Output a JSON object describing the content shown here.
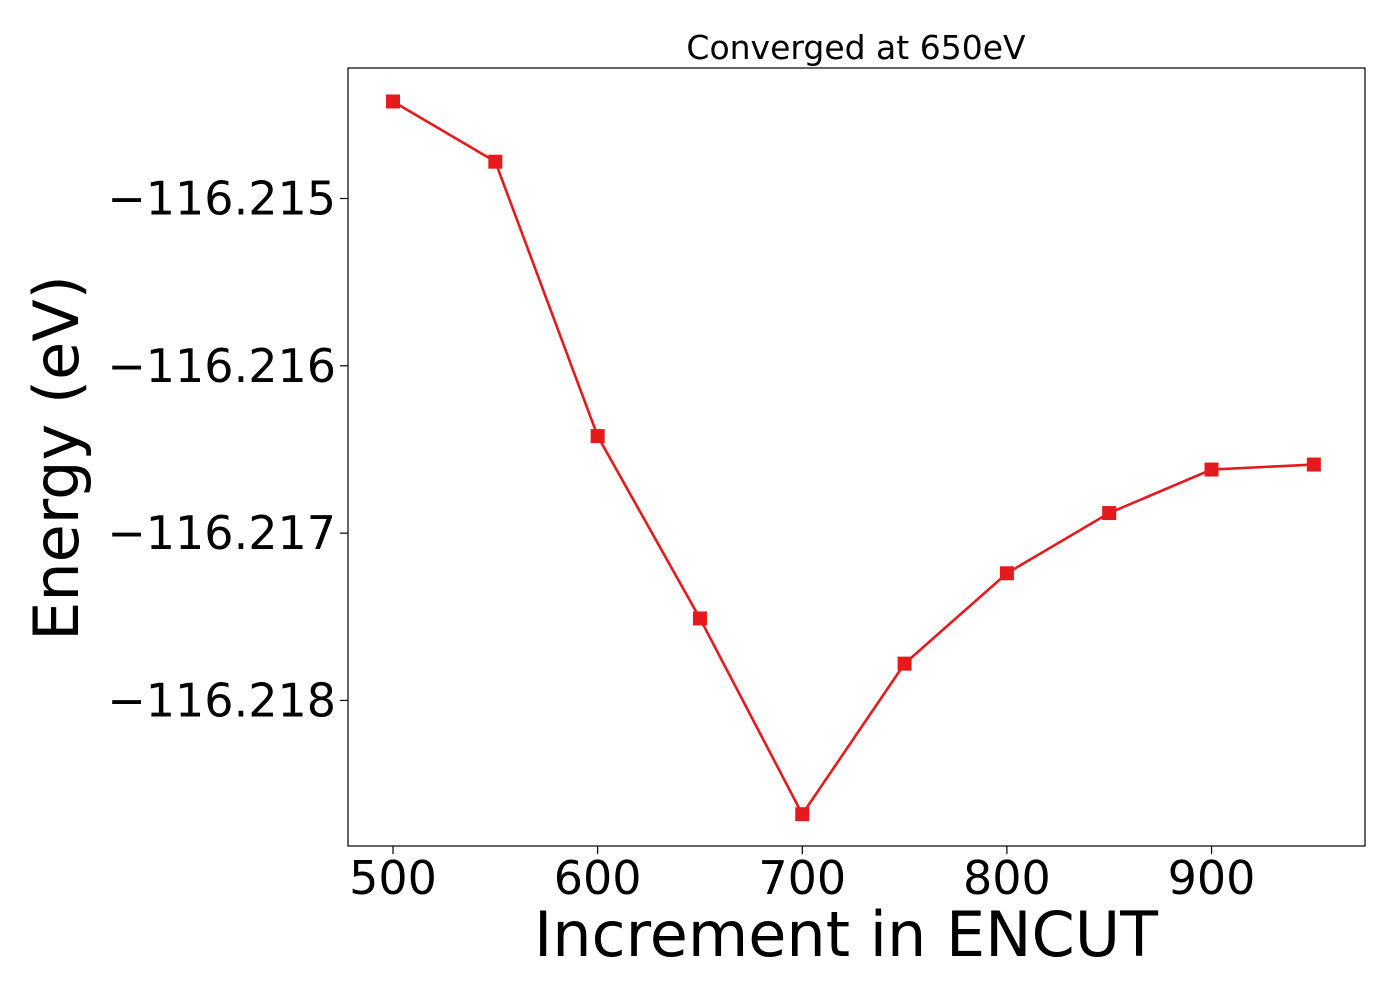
{
  "chart_data": {
    "type": "line",
    "title": "Converged at 650eV",
    "xlabel": "Increment in ENCUT",
    "ylabel": "Energy (eV)",
    "x": [
      500,
      550,
      600,
      650,
      700,
      750,
      800,
      850,
      900,
      950
    ],
    "series": [
      {
        "values": [
          -116.21442,
          -116.21478,
          -116.21642,
          -116.21751,
          -116.21868,
          -116.21778,
          -116.21724,
          -116.21688,
          -116.21662,
          -116.21659
        ],
        "color": "#e41a1c",
        "marker": "square"
      }
    ],
    "xlim": [
      478,
      975
    ],
    "ylim": [
      -116.21887,
      -116.21422
    ],
    "xticks": [
      500,
      600,
      700,
      800,
      900
    ],
    "xtick_labels": [
      "500",
      "600",
      "700",
      "800",
      "900"
    ],
    "yticks": [
      -116.215,
      -116.216,
      -116.217,
      -116.218
    ],
    "ytick_labels": [
      "−116.215",
      "−116.216",
      "−116.217",
      "−116.218"
    ],
    "grid": false,
    "legend": "none"
  }
}
